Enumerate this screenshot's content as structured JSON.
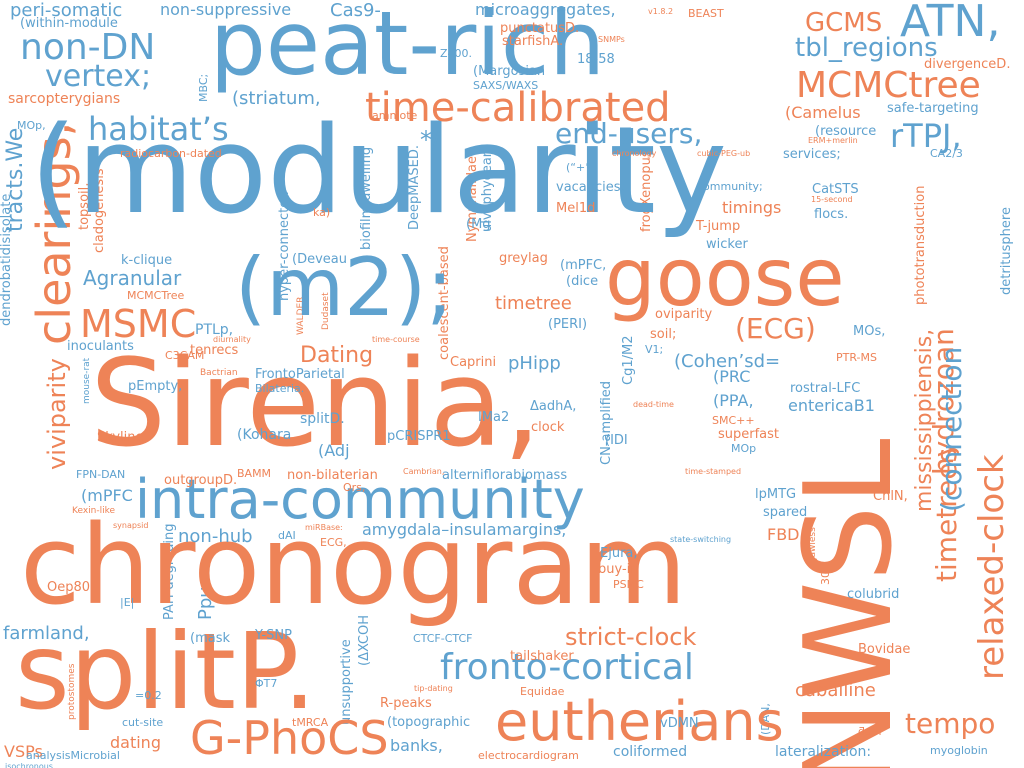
{
  "colors": {
    "blue": "#5fa2cf",
    "orange": "#ee8357",
    "background": "#ffffff"
  },
  "words": [
    {
      "id": "w1",
      "text": "(modularity"
    },
    {
      "id": "w2",
      "text": "Sirenia,"
    },
    {
      "id": "w3",
      "text": "chronogram"
    },
    {
      "id": "w4",
      "text": "peat-rich"
    },
    {
      "id": "w5",
      "text": "splitP."
    },
    {
      "id": "w6",
      "text": "NWSL"
    },
    {
      "id": "w7",
      "text": "(m2);"
    },
    {
      "id": "w8",
      "text": "goose"
    },
    {
      "id": "w9",
      "text": "intra-community"
    },
    {
      "id": "w10",
      "text": "eutherians"
    },
    {
      "id": "w11",
      "text": "time-calibrated"
    },
    {
      "id": "w12",
      "text": "G-PhoCS"
    },
    {
      "id": "w13",
      "text": "fronto-cortical"
    },
    {
      "id": "w14",
      "text": "relaxed-clock"
    },
    {
      "id": "w15",
      "text": "MCMCtree"
    },
    {
      "id": "w16",
      "text": "ATN,"
    },
    {
      "id": "w17",
      "text": "non-DN"
    },
    {
      "id": "w18",
      "text": "vertex;"
    },
    {
      "id": "w19",
      "text": "habitat’s"
    },
    {
      "id": "w20",
      "text": "clearings,"
    },
    {
      "id": "w21",
      "text": "MSMC"
    },
    {
      "id": "w22",
      "text": "end-users,"
    },
    {
      "id": "w23",
      "text": "rTPJ,"
    },
    {
      "id": "w24",
      "text": "timetrees"
    },
    {
      "id": "w25",
      "text": "hydrozoan"
    },
    {
      "id": "w26",
      "text": "strict-clock"
    },
    {
      "id": "w27",
      "text": "tempo"
    },
    {
      "id": "w28",
      "text": "GCMS"
    },
    {
      "id": "w29",
      "text": "tbl_regions"
    },
    {
      "id": "w30",
      "text": "(ECG)"
    },
    {
      "id": "w31",
      "text": "(connection"
    },
    {
      "id": "w32",
      "text": "viviparity"
    },
    {
      "id": "w33",
      "text": "Agranular"
    },
    {
      "id": "w34",
      "text": "Dating"
    },
    {
      "id": "w35",
      "text": "*/"
    },
    {
      "id": "w36",
      "text": "(Camelus"
    },
    {
      "id": "w37",
      "text": "(striatum,"
    },
    {
      "id": "w38",
      "text": "peri-somatic"
    },
    {
      "id": "w39",
      "text": "non-suppressive"
    },
    {
      "id": "w40",
      "text": "Cas9-"
    },
    {
      "id": "w41",
      "text": "microaggregates,"
    },
    {
      "id": "w42",
      "text": "tracts.We"
    },
    {
      "id": "w43",
      "text": "sarcopterygians"
    },
    {
      "id": "w44",
      "text": "pHipp"
    },
    {
      "id": "w45",
      "text": "(Cohen’sd="
    },
    {
      "id": "w46",
      "text": "timetree"
    },
    {
      "id": "w47",
      "text": "amygdala–insulamargins;"
    },
    {
      "id": "w48",
      "text": "non-hub"
    },
    {
      "id": "w49",
      "text": "caballine"
    },
    {
      "id": "w50",
      "text": "farmland,"
    },
    {
      "id": "w51",
      "text": "banks,"
    },
    {
      "id": "w52",
      "text": "dating"
    },
    {
      "id": "w53",
      "text": "VSPs"
    },
    {
      "id": "w54",
      "text": "lateralization:"
    },
    {
      "id": "w55",
      "text": "coliformed"
    },
    {
      "id": "w56",
      "text": "myoglobin"
    },
    {
      "id": "w57",
      "text": "analysisMicrobial"
    },
    {
      "id": "w58",
      "text": "electrocardiogram"
    },
    {
      "id": "w59",
      "text": "Ppu"
    },
    {
      "id": "w60",
      "text": "(mPFC"
    },
    {
      "id": "w61",
      "text": "(Adj"
    },
    {
      "id": "w62",
      "text": "FBD"
    },
    {
      "id": "w63",
      "text": "entericaB1"
    },
    {
      "id": "w64",
      "text": "(PPA,"
    },
    {
      "id": "w65",
      "text": "timings"
    },
    {
      "id": "w66",
      "text": "mississippiensis,"
    },
    {
      "id": "w67",
      "text": "phototransduction"
    },
    {
      "id": "w68",
      "text": "rostral-LFC"
    },
    {
      "id": "w69",
      "text": "PTLp,"
    },
    {
      "id": "w70",
      "text": "Skyline"
    },
    {
      "id": "w71",
      "text": "inoculants"
    },
    {
      "id": "w72",
      "text": "k-clique"
    },
    {
      "id": "w73",
      "text": "C3CAM"
    },
    {
      "id": "w74",
      "text": "pEmpty,"
    },
    {
      "id": "w75",
      "text": "tenrecs"
    },
    {
      "id": "w76",
      "text": "FrontoParietal"
    },
    {
      "id": "w77",
      "text": "outgroupD."
    },
    {
      "id": "w78",
      "text": "(Kohara"
    },
    {
      "id": "w79",
      "text": "splitD."
    },
    {
      "id": "w80",
      "text": "pCRISPR1"
    },
    {
      "id": "w81",
      "text": "IMa2"
    },
    {
      "id": "w82",
      "text": "clock"
    },
    {
      "id": "w83",
      "text": "(IDI"
    },
    {
      "id": "w84",
      "text": "SMC++"
    },
    {
      "id": "w85",
      "text": "superfast"
    },
    {
      "id": "w86",
      "text": "MOp"
    },
    {
      "id": "w87",
      "text": "spared"
    },
    {
      "id": "w88",
      "text": "lpMTG"
    },
    {
      "id": "w89",
      "text": "ChlN,"
    },
    {
      "id": "w90",
      "text": "non-bilaterian"
    },
    {
      "id": "w91",
      "text": "alterniflorabiomass"
    },
    {
      "id": "w92",
      "text": "BAMM"
    },
    {
      "id": "w93",
      "text": "FPN-DAN"
    },
    {
      "id": "w94",
      "text": "Ejura,"
    },
    {
      "id": "w95",
      "text": "buy-in"
    },
    {
      "id": "w96",
      "text": "PSMC"
    },
    {
      "id": "w97",
      "text": "CTCF-CTCF"
    },
    {
      "id": "w98",
      "text": "tailshaker"
    },
    {
      "id": "w99",
      "text": "colubrid"
    },
    {
      "id": "w100",
      "text": "Bovidae"
    },
    {
      "id": "w101",
      "text": "Y-SNP"
    },
    {
      "id": "w102",
      "text": "(mask"
    },
    {
      "id": "w103",
      "text": "Oep80"
    },
    {
      "id": "w104",
      "text": "|E|"
    },
    {
      "id": "w105",
      "text": "=0.2"
    },
    {
      "id": "w106",
      "text": "ΦT7"
    },
    {
      "id": "w107",
      "text": "cut-site"
    },
    {
      "id": "w108",
      "text": "tMRCA"
    },
    {
      "id": "w109",
      "text": "R-peaks"
    },
    {
      "id": "w110",
      "text": "(topographic"
    },
    {
      "id": "w111",
      "text": "vDMN"
    },
    {
      "id": "w112",
      "text": "Equidae"
    },
    {
      "id": "w113",
      "text": "GCMS"
    },
    {
      "id": "w114",
      "text": "safe-targeting"
    },
    {
      "id": "w115",
      "text": "services;"
    },
    {
      "id": "w116",
      "text": "CA2/3"
    },
    {
      "id": "w117",
      "text": "divergenceD."
    },
    {
      "id": "w118",
      "text": "(resource"
    },
    {
      "id": "w119",
      "text": "CatSTS"
    },
    {
      "id": "w120",
      "text": "flocs."
    },
    {
      "id": "w121",
      "text": "community;"
    },
    {
      "id": "w122",
      "text": "vacancies,"
    },
    {
      "id": "w123",
      "text": "(“+”"
    },
    {
      "id": "w124",
      "text": "Mel1d"
    },
    {
      "id": "w125",
      "text": "T-jump"
    },
    {
      "id": "w126",
      "text": "wicker"
    },
    {
      "id": "w127",
      "text": "soil;"
    },
    {
      "id": "w128",
      "text": "oviparity"
    },
    {
      "id": "w129",
      "text": "V1;"
    },
    {
      "id": "w130",
      "text": "MOs,"
    },
    {
      "id": "w131",
      "text": "PTR-MS"
    },
    {
      "id": "w132",
      "text": "(PRC"
    },
    {
      "id": "w133",
      "text": "ΔadhA,"
    },
    {
      "id": "w134",
      "text": "(PERI)"
    },
    {
      "id": "w135",
      "text": "(dice"
    },
    {
      "id": "w136",
      "text": "(mPFC,"
    },
    {
      "id": "w137",
      "text": "greylag"
    },
    {
      "id": "w138",
      "text": "(Mg"
    },
    {
      "id": "w139",
      "text": "(Deveau"
    },
    {
      "id": "w140",
      "text": "Caprini"
    },
    {
      "id": "w141",
      "text": "18-58"
    },
    {
      "id": "w142",
      "text": "(Margosian"
    },
    {
      "id": "w143",
      "text": "SAXS/WAXS"
    },
    {
      "id": "w144",
      "text": "Z400."
    },
    {
      "id": "w145",
      "text": "starfishA."
    },
    {
      "id": "w146",
      "text": "punctatusD."
    },
    {
      "id": "w147",
      "text": "amniote"
    },
    {
      "id": "w148",
      "text": "radiocarbon-dated"
    },
    {
      "id": "w149",
      "text": "(within-module"
    },
    {
      "id": "w150",
      "text": "MOp,"
    },
    {
      "id": "w151",
      "text": "MBC;"
    },
    {
      "id": "w152",
      "text": "topsoil,"
    },
    {
      "id": "w153",
      "text": "cladogenesis"
    },
    {
      "id": "w154",
      "text": "hyper-connected"
    },
    {
      "id": "w155",
      "text": "ka)"
    },
    {
      "id": "w156",
      "text": "biofilm-dwelling"
    },
    {
      "id": "w157",
      "text": "DeepMASED."
    },
    {
      "id": "w158",
      "text": "Nymphalidae"
    },
    {
      "id": "w159",
      "text": "ulvophycean"
    },
    {
      "id": "w160",
      "text": "frogXenopus"
    },
    {
      "id": "w161",
      "text": "BEAST"
    },
    {
      "id": "w162",
      "text": "v1.8.2"
    },
    {
      "id": "w163",
      "text": "SNMPs"
    },
    {
      "id": "w164",
      "text": "ERM+merlin"
    },
    {
      "id": "w165",
      "text": "cubic-PEG-ub"
    },
    {
      "id": "w166",
      "text": "chronology"
    },
    {
      "id": "w167",
      "text": "15-second"
    },
    {
      "id": "w168",
      "text": "detritusphere"
    },
    {
      "id": "w169",
      "text": "MCMCTree"
    },
    {
      "id": "w170",
      "text": "diurnality"
    },
    {
      "id": "w171",
      "text": "WALDER"
    },
    {
      "id": "w172",
      "text": "Dudaset"
    },
    {
      "id": "w173",
      "text": "coalescent-based"
    },
    {
      "id": "w174",
      "text": "time-course"
    },
    {
      "id": "w175",
      "text": "Bactrian"
    },
    {
      "id": "w176",
      "text": "mouse-rat"
    },
    {
      "id": "w177",
      "text": "Bilateria."
    },
    {
      "id": "w178",
      "text": "CN-amplified"
    },
    {
      "id": "w179",
      "text": "Cg1/M2"
    },
    {
      "id": "w180",
      "text": "dead-time"
    },
    {
      "id": "w181",
      "text": "time-stamped"
    },
    {
      "id": "w182",
      "text": "Cambrian,"
    },
    {
      "id": "w183",
      "text": "Ors,"
    },
    {
      "id": "w184",
      "text": "Kexin-like"
    },
    {
      "id": "w185",
      "text": "synapsid"
    },
    {
      "id": "w186",
      "text": "dAI"
    },
    {
      "id": "w187",
      "text": "miRBase:"
    },
    {
      "id": "w188",
      "text": "ECG,"
    },
    {
      "id": "w189",
      "text": "PAH-degrading"
    },
    {
      "id": "w190",
      "text": "(ΔXCOH"
    },
    {
      "id": "w191",
      "text": "unsupportive"
    },
    {
      "id": "w192",
      "text": "state-switching"
    },
    {
      "id": "w193",
      "text": "jawless"
    },
    {
      "id": "w194",
      "text": "30-s"
    },
    {
      "id": "w195",
      "text": "protostomes"
    },
    {
      "id": "w196",
      "text": "isochronous"
    },
    {
      "id": "w197",
      "text": "tip-dating"
    },
    {
      "id": "w198",
      "text": "(DAN,"
    },
    {
      "id": "w199",
      "text": "ƌaǝi"
    },
    {
      "id": "w200",
      "text": "dendrobatidisisolate"
    }
  ]
}
